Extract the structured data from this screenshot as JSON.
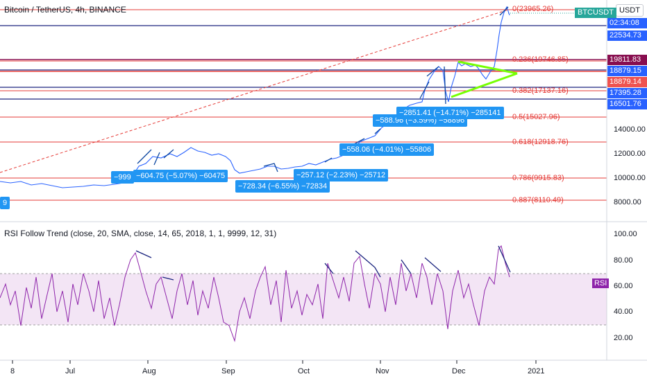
{
  "header": {
    "title": "Bitcoin / TetherUS, 4h, BINANCE",
    "currency_button": "USDT",
    "symbol_tag": "BTCUSDT"
  },
  "price_labels": [
    {
      "text": "02:34:08",
      "bg": "#2962ff"
    },
    {
      "text": "22534.73",
      "bg": "#2962ff"
    },
    {
      "text": "19811.83",
      "bg": "#880e4f"
    },
    {
      "text": "18879.15",
      "bg": "#2962ff"
    },
    {
      "text": "18879.14",
      "bg": "#ef5350"
    },
    {
      "text": "17395.28",
      "bg": "#2962ff"
    },
    {
      "text": "16501.76",
      "bg": "#2962ff"
    }
  ],
  "price_axis": [
    "14000.00",
    "12000.00",
    "10000.00",
    "8000.00"
  ],
  "fib_labels": [
    "0(23965.26)",
    "0.236(19746.85)",
    "0.382(17137.16)",
    "0.5(15027.96)",
    "0.618(12918.76)",
    "0.786(9915.83)",
    "0.887(8110.49)"
  ],
  "callouts": [
    "−999",
    "−604.75 (−5.07%) −60475",
    "−728.34 (−6.55%) −72834",
    "−257.12 (−2.23%) −25712",
    "−558.06 (−4.01%) −55806",
    "−588.96 (−3.59%) −58896",
    "−2851.41 (−14.71%) −285141",
    "9"
  ],
  "rsi": {
    "title": "RSI Follow Trend (close, 20, SMA, close, 14, 65, 2018, 1, 1, 9999, 12, 31)",
    "tag": "RSI",
    "axis": [
      "100.00",
      "80.00",
      "60.00",
      "40.00",
      "20.00"
    ]
  },
  "time_axis": [
    "8",
    "Jul",
    "Aug",
    "Sep",
    "Oct",
    "Nov",
    "Dec",
    "2021"
  ],
  "colors": {
    "fib_line": "#e53935",
    "candle_line": "#2962ff",
    "rsi_line": "#8e24aa",
    "rsi_band": "#f3e5f5",
    "triangle": "#76ff03",
    "callout": "#2196f3"
  }
}
